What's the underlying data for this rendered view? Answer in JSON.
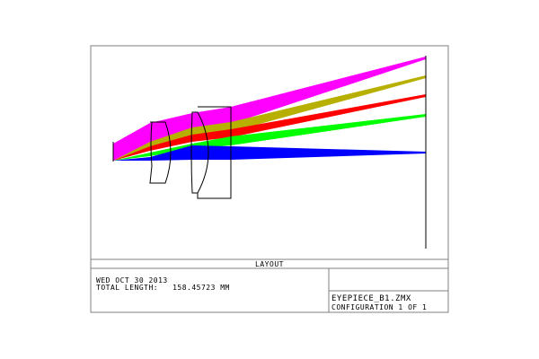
{
  "plot_title": "LAYOUT",
  "date": "WED OCT 30 2013",
  "total_length": "TOTAL LENGTH:   158.45723 MM",
  "file_name": "EYEPIECE_B1.ZMX",
  "configuration": "CONFIGURATION 1 OF 1",
  "colors": {
    "field1": "#ff00ff",
    "field2": "#b8b000",
    "field3": "#ff0000",
    "field4": "#00ff00",
    "field5": "#0000ff",
    "frame": "#808080",
    "lens": "#000000"
  }
}
